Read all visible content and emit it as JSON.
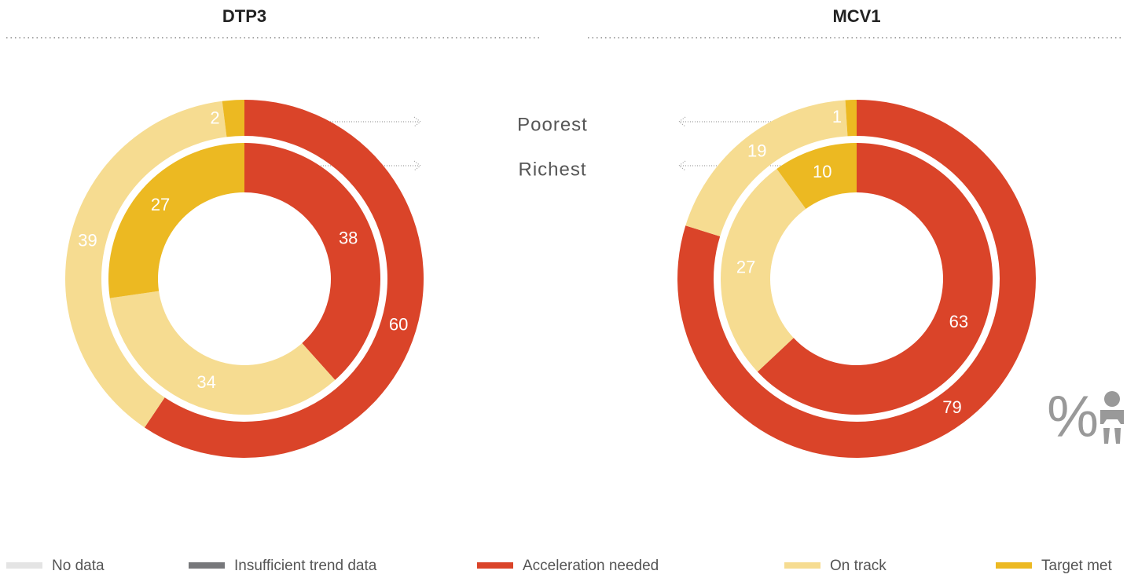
{
  "rings": [
    "Poorest",
    "Richest"
  ],
  "legend": [
    {
      "name": "No data",
      "color": "#e4e4e4"
    },
    {
      "name": "Insufficient trend data",
      "color": "#77787b"
    },
    {
      "name": "Acceleration needed",
      "color": "#da4429"
    },
    {
      "name": "On track",
      "color": "#f6dc91"
    },
    {
      "name": "Target met",
      "color": "#ecb922"
    }
  ],
  "unit_icon": "%",
  "chart_data": [
    {
      "type": "pie",
      "title": "DTP3",
      "series": [
        {
          "values": [
            0,
            0
          ]
        },
        {
          "values": [
            0,
            0
          ]
        },
        {
          "values": [
            60,
            38
          ]
        },
        {
          "values": [
            39,
            34
          ]
        },
        {
          "values": [
            2,
            27
          ]
        }
      ]
    },
    {
      "type": "pie",
      "title": "MCV1",
      "series": [
        {
          "values": [
            0,
            0
          ]
        },
        {
          "values": [
            0,
            0
          ]
        },
        {
          "values": [
            79,
            63
          ]
        },
        {
          "values": [
            19,
            27
          ]
        },
        {
          "values": [
            1,
            10
          ]
        }
      ]
    }
  ]
}
